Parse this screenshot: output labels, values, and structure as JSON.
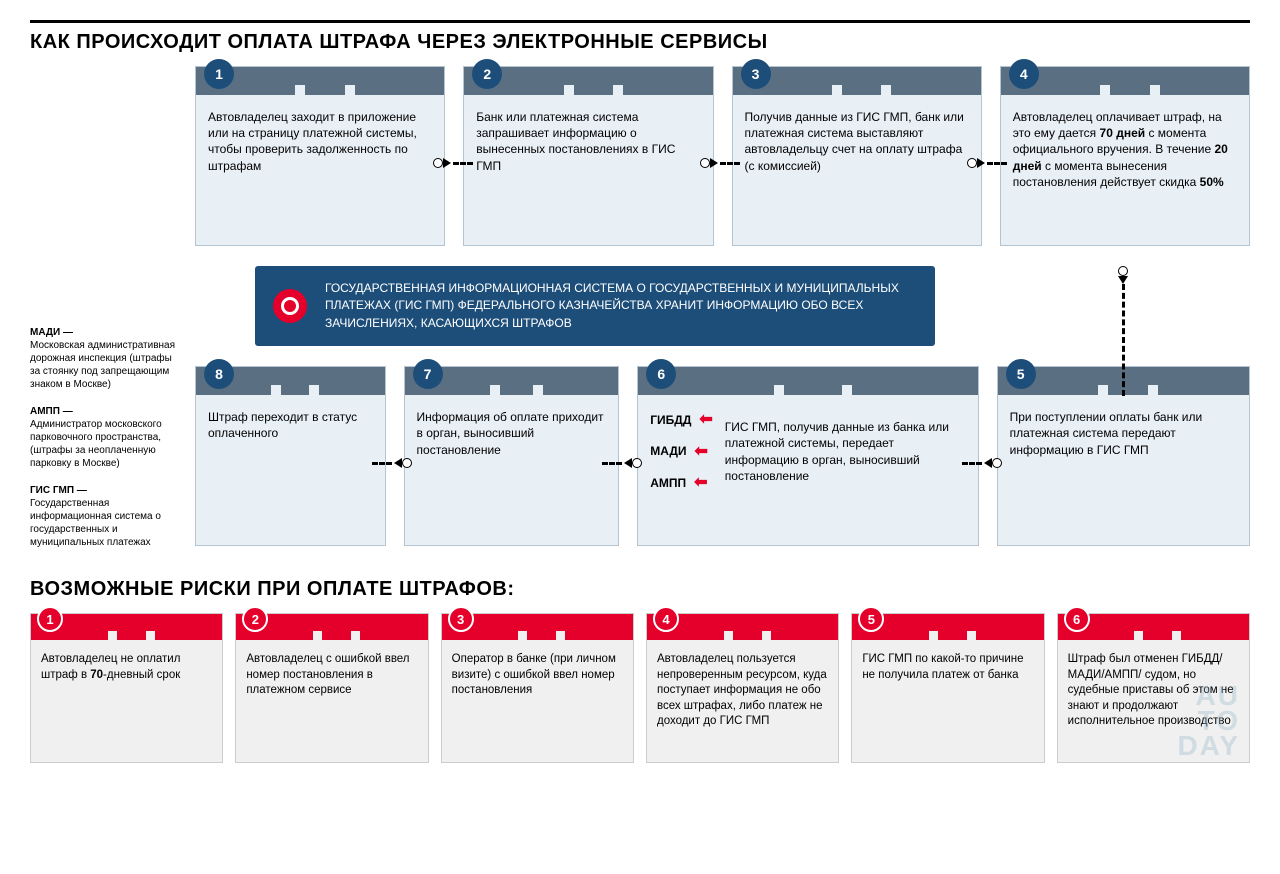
{
  "colors": {
    "card_header": "#5a6f82",
    "card_bg": "#e8eff5",
    "card_border": "#b5c4d1",
    "num_circle": "#1d4e7a",
    "info_bg": "#1d4e7a",
    "accent_red": "#e4002b",
    "risk_bg": "#f0f0f0"
  },
  "title1": "КАК ПРОИСХОДИТ ОПЛАТА ШТРАФА ЧЕРЕЗ ЭЛЕКТРОННЫЕ СЕРВИСЫ",
  "title2": "ВОЗМОЖНЫЕ РИСКИ ПРИ ОПЛАТЕ ШТРАФОВ:",
  "legend": [
    {
      "term": "МАДИ —",
      "def": "Московская административная дорожная инспекция (штрафы за стоянку под запрещающим знаком в Москве)"
    },
    {
      "term": "АМПП —",
      "def": "Администратор московского парковочного пространства, (штрафы за неоплаченную парковку в Москве)"
    },
    {
      "term": "ГИС ГМП —",
      "def": "Государственная информационная система о государственных и муниципальных платежах"
    }
  ],
  "steps": [
    {
      "n": "1",
      "html": "Автовладелец заходит в приложение или на страницу платежной системы, чтобы проверить задолженность по штрафам"
    },
    {
      "n": "2",
      "html": "Банк или платежная система запрашивает информацию о вынесенных постановлениях в ГИС ГМП"
    },
    {
      "n": "3",
      "html": "Получив данные из ГИС ГМП, банк или платежная система выставляют автовладельцу счет на оплату штрафа (с комиссией)"
    },
    {
      "n": "4",
      "html": "Автовладелец оплачивает штраф, на это ему дается <b>70 дней</b> с момента официального вручения. В течение <b>20 дней</b> с момента вынесения постановления действует скидка <b>50%</b>"
    },
    {
      "n": "5",
      "html": "При поступлении оплаты банк или платежная система передают информацию в ГИС ГМП"
    },
    {
      "n": "6",
      "html": "ГИС ГМП, получив данные из банка или платежной системы, передает информацию в орган, выносивший постановление"
    },
    {
      "n": "7",
      "html": "Информация об оплате приходит в орган, выносивший постановление"
    },
    {
      "n": "8",
      "html": "Штраф переходит в статус оплаченного"
    }
  ],
  "agencies": [
    "ГИБДД",
    "МАДИ",
    "АМПП"
  ],
  "info": "ГОСУДАРСТВЕННАЯ ИНФОРМАЦИОННАЯ СИСТЕМА О ГОСУДАРСТВЕННЫХ И МУНИЦИПАЛЬНЫХ ПЛАТЕЖАХ (ГИС ГМП) ФЕДЕРАЛЬНОГО КАЗНАЧЕЙСТВА ХРАНИТ ИНФОРМАЦИЮ ОБО ВСЕХ ЗАЧИСЛЕНИЯХ, КАСАЮЩИХСЯ ШТРАФОВ",
  "risks": [
    {
      "n": "1",
      "html": "Автовладелец не оплатил штраф в <b>70</b>-дневный срок"
    },
    {
      "n": "2",
      "html": "Автовладелец с ошибкой ввел номер постановления в платежном сервисе"
    },
    {
      "n": "3",
      "html": "Оператор в банке (при личном визите) с ошибкой ввел номер постановления"
    },
    {
      "n": "4",
      "html": "Автовладелец пользуется непроверенным ресурсом, куда поступает информация не обо всех штрафах, либо платеж не доходит до ГИС ГМП"
    },
    {
      "n": "5",
      "html": "ГИС ГМП по какой-то причине не получила платеж от банка"
    },
    {
      "n": "6",
      "html": "Штраф был отменен ГИБДД/МАДИ/АМПП/ судом, но судебные приставы об этом не знают и продолжают исполнительное производство"
    }
  ],
  "watermark": "AU\nTO\nDAY"
}
